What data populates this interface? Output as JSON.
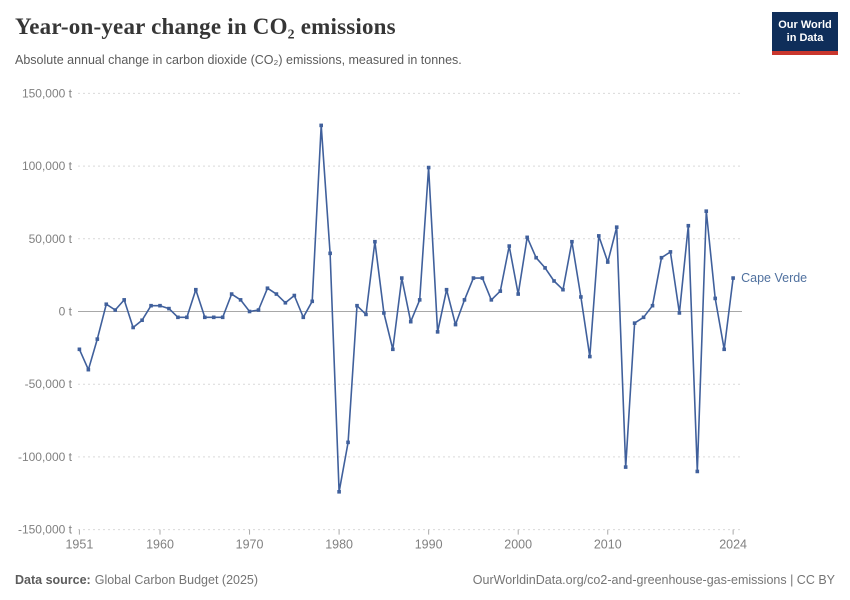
{
  "header": {
    "title": "Year-on-year change in CO₂ emissions",
    "subtitle": "Absolute annual change in carbon dioxide (CO₂) emissions, measured in tonnes.",
    "logo": {
      "line1": "Our World",
      "line2": "in Data"
    }
  },
  "footer": {
    "source_label": "Data source:",
    "source_value": "Global Carbon Budget (2025)",
    "citation": "OurWorldinData.org/co2-and-greenhouse-gas-emissions | CC BY"
  },
  "colors": {
    "line": "#40609C",
    "entity_label": "#50719F",
    "zero_line": "#a8a8a8",
    "gridline": "#d9d9d9",
    "tick_text": "#818181",
    "logo_navy": "#0f2e5a",
    "logo_red": "#c9362d"
  },
  "chart_data": {
    "type": "line",
    "title": "Year-on-year change in CO₂ emissions",
    "subtitle": "Absolute annual change in carbon dioxide (CO₂) emissions, measured in tonnes.",
    "entity": "Cape Verde",
    "unit": "t",
    "ylim": [
      -150000,
      150000
    ],
    "grid": "horizontal-dashed",
    "legend_position": "right-of-last-point",
    "yticks": {
      "values": [
        150000,
        100000,
        50000,
        0,
        -50000,
        -100000,
        -150000
      ],
      "labels": [
        "150,000 t",
        "100,000 t",
        "50,000 t",
        "0 t",
        "-50,000 t",
        "-100,000 t",
        "-150,000 t"
      ]
    },
    "xticks": {
      "values": [
        1951,
        1960,
        1970,
        1980,
        1990,
        2000,
        2010,
        2024
      ],
      "labels": [
        "1951",
        "1960",
        "1970",
        "1980",
        "1990",
        "2000",
        "2010",
        "2024"
      ]
    },
    "x": [
      1951,
      1952,
      1953,
      1954,
      1955,
      1956,
      1957,
      1958,
      1959,
      1960,
      1961,
      1962,
      1963,
      1964,
      1965,
      1966,
      1967,
      1968,
      1969,
      1970,
      1971,
      1972,
      1973,
      1974,
      1975,
      1976,
      1977,
      1978,
      1979,
      1980,
      1981,
      1982,
      1983,
      1984,
      1985,
      1986,
      1987,
      1988,
      1989,
      1990,
      1991,
      1992,
      1993,
      1994,
      1995,
      1996,
      1997,
      1998,
      1999,
      2000,
      2001,
      2002,
      2003,
      2004,
      2005,
      2006,
      2007,
      2008,
      2009,
      2010,
      2011,
      2012,
      2013,
      2014,
      2015,
      2016,
      2017,
      2018,
      2019,
      2020,
      2021,
      2022,
      2023,
      2024
    ],
    "values": [
      -26000,
      -40000,
      -19000,
      5000,
      1000,
      8000,
      -11000,
      -6000,
      4000,
      4000,
      2000,
      -4000,
      -4000,
      15000,
      -4000,
      -4000,
      -4000,
      12000,
      8000,
      0,
      1000,
      16000,
      12000,
      6000,
      11000,
      -4000,
      7000,
      128000,
      40000,
      -124000,
      -90000,
      4000,
      -2000,
      48000,
      -1000,
      -26000,
      23000,
      -7000,
      8000,
      99000,
      -14000,
      15000,
      -9000,
      8000,
      23000,
      23000,
      8000,
      14000,
      45000,
      12000,
      51000,
      37000,
      30000,
      21000,
      15000,
      48000,
      10000,
      -31000,
      52000,
      34000,
      58000,
      -107000,
      -8000,
      -4000,
      4000,
      37000,
      41000,
      -1000,
      59000,
      -110000,
      69000,
      9000,
      -26000,
      23000
    ]
  }
}
